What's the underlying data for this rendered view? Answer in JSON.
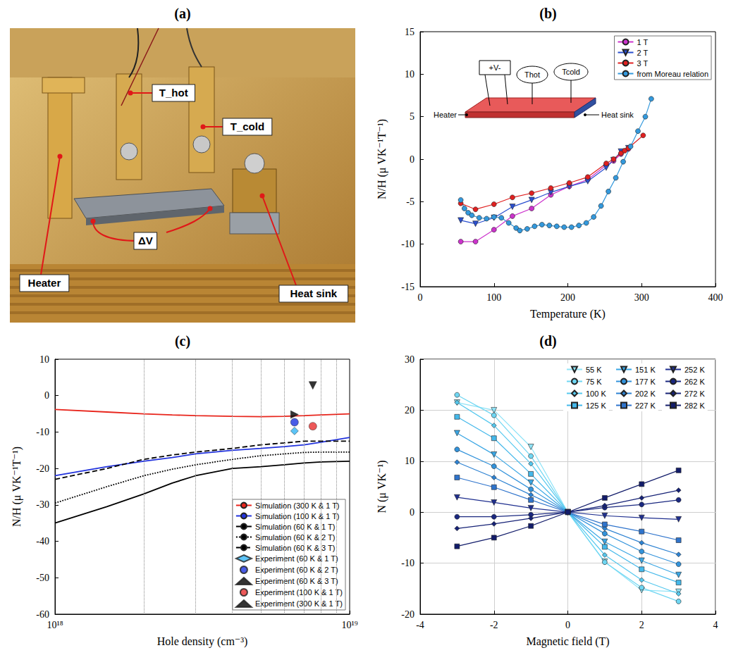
{
  "photo": {
    "title": "(a)",
    "labels": {
      "t_hot": "T_hot",
      "t_cold": "T_cold",
      "delta_v": "ΔV",
      "heater": "Heater",
      "heat_sink": "Heat sink"
    }
  },
  "chart_data": [
    {
      "type": "line",
      "title": "(b)",
      "x_label": "Temperature (K)",
      "y_label": "N/H (μ VK⁻¹T⁻¹)",
      "xlim": [
        0,
        400
      ],
      "xticks": [
        0,
        100,
        200,
        300,
        400
      ],
      "ylim": [
        -15,
        15
      ],
      "yticks": [
        -15,
        -10,
        -5,
        0,
        5,
        10,
        15
      ],
      "grid": false,
      "legend": "upper right",
      "inset": {
        "voltage": "+V-",
        "t_hot": "Thot",
        "t_cold": "Tcold",
        "heater": "Heater",
        "heat_sink": "Heat sink"
      },
      "series": [
        {
          "name": "1 T",
          "color": "#cc33cc",
          "marker": "circle",
          "x": [
            55,
            75,
            100,
            125,
            151,
            177,
            202,
            227,
            252,
            262,
            272,
            282
          ],
          "values": [
            -9.7,
            -9.7,
            -8.3,
            -6.7,
            -5.8,
            -4.2,
            -3.2,
            -2.4,
            -0.7,
            -0.2,
            0.6,
            1.2
          ]
        },
        {
          "name": "2 T",
          "color": "#2a4fd0",
          "marker": "triangle-down",
          "x": [
            55,
            75,
            100,
            125,
            151,
            177,
            202,
            227,
            252,
            262,
            272,
            282
          ],
          "values": [
            -7.2,
            -7.6,
            -6.9,
            -5.6,
            -4.8,
            -3.9,
            -3.2,
            -2.6,
            -1.0,
            -0.1,
            0.9,
            1.3
          ]
        },
        {
          "name": "3 T",
          "color": "#e02020",
          "marker": "circle",
          "x": [
            55,
            75,
            100,
            125,
            151,
            177,
            202,
            227,
            252,
            262,
            272,
            277,
            282,
            302
          ],
          "values": [
            -5.2,
            -5.9,
            -5.3,
            -4.5,
            -4.0,
            -3.4,
            -2.8,
            -2.1,
            -0.5,
            0.0,
            0.7,
            1.0,
            1.3,
            2.8
          ]
        },
        {
          "name": "from Moreau relation",
          "color": "#3399dd",
          "marker": "circle",
          "x": [
            55,
            60,
            65,
            70,
            80,
            90,
            100,
            110,
            120,
            130,
            135,
            145,
            155,
            165,
            175,
            185,
            195,
            205,
            215,
            225,
            235,
            245,
            255,
            265,
            275,
            285,
            295,
            305,
            313
          ],
          "values": [
            -4.8,
            -5.8,
            -6.3,
            -6.6,
            -6.9,
            -7.0,
            -6.8,
            -6.9,
            -7.5,
            -8.1,
            -8.4,
            -8.2,
            -7.9,
            -7.7,
            -7.8,
            -7.9,
            -8.0,
            -8.0,
            -7.8,
            -7.5,
            -6.8,
            -5.5,
            -3.8,
            -2.2,
            -0.3,
            1.5,
            3.3,
            5.0,
            7.1
          ]
        }
      ]
    },
    {
      "type": "line",
      "title": "(c)",
      "x_label": "Hole density (cm⁻³)",
      "y_label": "N/H (μ VK⁻¹T⁻¹)",
      "log": "x",
      "xlim": [
        1e+18,
        1e+19
      ],
      "xticks": [
        {
          "value": 1e+18,
          "label": "10¹⁸"
        },
        {
          "value": 1e+19,
          "label": "10¹⁹"
        }
      ],
      "ylim": [
        -60,
        10
      ],
      "yticks": [
        -60,
        -50,
        -40,
        -30,
        -20,
        -10,
        0,
        10
      ],
      "grid": "x",
      "legend": "lower right",
      "series": [
        {
          "name": "Simulation (300 K & 1 T)",
          "type": "line",
          "color": "#e8251c",
          "line_style": "solid",
          "x": [
            1e+18,
            1.5e+18,
            2e+18,
            2.5e+18,
            3e+18,
            4e+18,
            5e+18,
            6e+18,
            7e+18,
            8e+18,
            1e+19
          ],
          "values": [
            -3.8,
            -4.5,
            -5.0,
            -5.3,
            -5.5,
            -5.7,
            -5.8,
            -5.7,
            -5.5,
            -5.3,
            -5.0
          ]
        },
        {
          "name": "Simulation (100 K & 1 T)",
          "type": "line",
          "color": "#2233dd",
          "line_style": "solid",
          "x": [
            1e+18,
            1.5e+18,
            2e+18,
            2.5e+18,
            3e+18,
            4e+18,
            5e+18,
            6e+18,
            7e+18,
            8e+18,
            1e+19
          ],
          "values": [
            -22,
            -19.5,
            -18,
            -17,
            -16,
            -15,
            -14.5,
            -14,
            -13.5,
            -12.8,
            -11.5
          ]
        },
        {
          "name": "Simulation (60 K & 1 T)",
          "type": "line",
          "color": "#000000",
          "line_style": "solid",
          "x": [
            1e+18,
            1.5e+18,
            2e+18,
            2.5e+18,
            3e+18,
            4e+18,
            5e+18,
            6e+18,
            7e+18,
            8e+18,
            1e+19
          ],
          "values": [
            -35,
            -30.5,
            -27,
            -24,
            -22,
            -20,
            -19.5,
            -19,
            -18.5,
            -18.2,
            -18
          ]
        },
        {
          "name": "Simulation (60 K & 2 T)",
          "type": "line",
          "color": "#000000",
          "line_style": "dotted",
          "x": [
            1e+18,
            1.5e+18,
            2e+18,
            2.5e+18,
            3e+18,
            4e+18,
            5e+18,
            6e+18,
            7e+18,
            8e+18,
            1e+19
          ],
          "values": [
            -29.5,
            -25,
            -22,
            -20.2,
            -19,
            -17.5,
            -16.5,
            -16,
            -15.6,
            -15.5,
            -15.5
          ]
        },
        {
          "name": "Simulation (60 K & 3 T)",
          "type": "line",
          "color": "#000000",
          "line_style": "dashed",
          "x": [
            1e+18,
            1.5e+18,
            2e+18,
            2.5e+18,
            3e+18,
            4e+18,
            5e+18,
            6e+18,
            7e+18,
            8e+18,
            1e+19
          ],
          "values": [
            -23,
            -20,
            -17.5,
            -16.3,
            -15.5,
            -14.5,
            -13.5,
            -13,
            -12.5,
            -12.5,
            -12.5
          ]
        },
        {
          "name": "Experiment (60 K & 1 T)",
          "type": "scatter",
          "color": "#33b5f5",
          "marker": "diamond",
          "x": [
            6.5e+18
          ],
          "values": [
            -9.7
          ]
        },
        {
          "name": "Experiment (60 K & 2 T)",
          "type": "scatter",
          "color": "#1c33e0",
          "marker": "circle",
          "x": [
            6.5e+18
          ],
          "values": [
            -7.3
          ]
        },
        {
          "name": "Experiment (60 K & 3 T)",
          "type": "scatter",
          "color": "#000000",
          "marker": "triangle-right",
          "x": [
            6.5e+18
          ],
          "values": [
            -5.2
          ]
        },
        {
          "name": "Experiment (100 K & 1 T)",
          "type": "scatter",
          "color": "#e83030",
          "marker": "circle",
          "x": [
            7.5e+18
          ],
          "values": [
            -8.4
          ]
        },
        {
          "name": "Experiment (300 K & 1 T)",
          "type": "scatter",
          "color": "#000000",
          "marker": "triangle-down",
          "x": [
            7.5e+18
          ],
          "values": [
            2.8
          ]
        }
      ]
    },
    {
      "type": "line",
      "title": "(d)",
      "x_label": "Magnetic field (T)",
      "y_label": "N (μ VK⁻¹)",
      "xlim": [
        -4,
        4
      ],
      "xticks": [
        -4,
        -2,
        0,
        2,
        4
      ],
      "ylim": [
        -20,
        30
      ],
      "yticks": [
        -20,
        -10,
        0,
        10,
        20,
        30
      ],
      "grid": true,
      "legend": "upper right",
      "x": [
        -3,
        -2,
        -1,
        0,
        1,
        2,
        3
      ],
      "series": [
        {
          "name": "55 K",
          "color": "#8fe3f7",
          "marker": "triangle-down",
          "values": [
            21.5,
            20,
            12.8,
            0,
            -9.7,
            -15.3,
            -15.6
          ]
        },
        {
          "name": "75 K",
          "color": "#6fd6f2",
          "marker": "circle",
          "values": [
            23,
            19,
            11,
            0,
            -9.8,
            -14.8,
            -17.5
          ]
        },
        {
          "name": "100 K",
          "color": "#55c8ee",
          "marker": "diamond",
          "values": [
            21.5,
            17,
            9.5,
            0,
            -8.4,
            -13.3,
            -16
          ]
        },
        {
          "name": "125 K",
          "color": "#44b8ea",
          "marker": "square",
          "values": [
            18.7,
            14.5,
            7.5,
            0,
            -6.8,
            -11.2,
            -13.8
          ]
        },
        {
          "name": "151 K",
          "color": "#3aa6e4",
          "marker": "triangle-down",
          "values": [
            15.5,
            11.3,
            5.8,
            0,
            -5.8,
            -9.5,
            -12.3
          ]
        },
        {
          "name": "177 K",
          "color": "#3393db",
          "marker": "circle",
          "values": [
            12.3,
            9,
            4.5,
            0,
            -4.2,
            -7.7,
            -10.2
          ]
        },
        {
          "name": "202 K",
          "color": "#2d82d2",
          "marker": "diamond",
          "values": [
            9.8,
            6.8,
            3.4,
            0,
            -3.2,
            -6,
            -8.3
          ]
        },
        {
          "name": "227 K",
          "color": "#2f74cc",
          "marker": "square",
          "values": [
            6.8,
            4.9,
            2.4,
            0,
            -2.4,
            -3.8,
            -5.5
          ]
        },
        {
          "name": "252 K",
          "color": "#1f2f8f",
          "marker": "triangle-down",
          "values": [
            2.9,
            1.9,
            0.8,
            0,
            -0.7,
            -1.1,
            -1.4
          ]
        },
        {
          "name": "262 K",
          "color": "#1a2880",
          "marker": "circle",
          "values": [
            -0.9,
            -0.9,
            -0.5,
            0,
            0.9,
            1.5,
            2.4
          ]
        },
        {
          "name": "272 K",
          "color": "#162276",
          "marker": "diamond",
          "values": [
            -3.2,
            -2.3,
            -1.2,
            0,
            1.3,
            2.8,
            4.3
          ]
        },
        {
          "name": "282 K",
          "color": "#121c6a",
          "marker": "square",
          "values": [
            -6.7,
            -5,
            -2.7,
            0,
            2.8,
            5.5,
            8.2
          ]
        }
      ]
    }
  ]
}
